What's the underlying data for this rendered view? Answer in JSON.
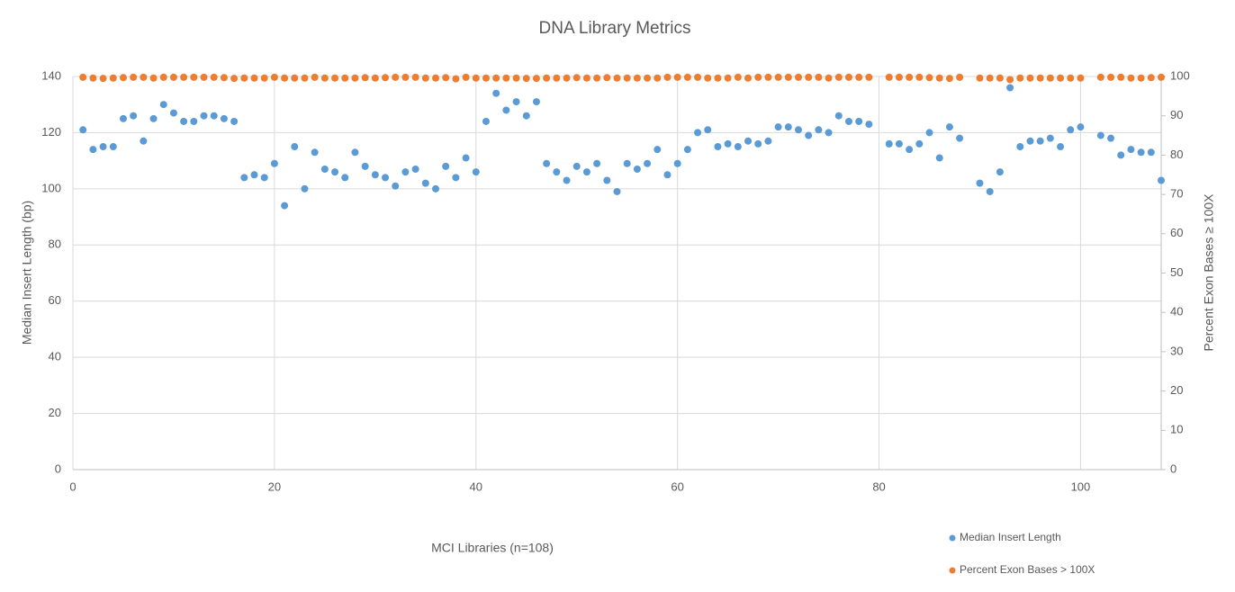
{
  "chart_data": {
    "type": "scatter",
    "title": "DNA Library Metrics",
    "x_label": "MCI Libraries (n=108)",
    "y_label": "Median Insert Length (bp)",
    "y2_label": "Percent Exon Bases ≥ 100X",
    "x": [
      1,
      2,
      3,
      4,
      5,
      6,
      7,
      8,
      9,
      10,
      11,
      12,
      13,
      14,
      15,
      16,
      17,
      18,
      19,
      20,
      21,
      22,
      23,
      24,
      25,
      26,
      27,
      28,
      29,
      30,
      31,
      32,
      33,
      34,
      35,
      36,
      37,
      38,
      39,
      40,
      41,
      42,
      43,
      44,
      45,
      46,
      47,
      48,
      49,
      50,
      51,
      52,
      53,
      54,
      55,
      56,
      57,
      58,
      59,
      60,
      61,
      62,
      63,
      64,
      65,
      66,
      67,
      68,
      69,
      70,
      71,
      72,
      73,
      74,
      75,
      76,
      77,
      78,
      79,
      81,
      82,
      83,
      84,
      85,
      86,
      87,
      88,
      90,
      91,
      92,
      93,
      94,
      95,
      96,
      97,
      98,
      99,
      100,
      102,
      103,
      104,
      105,
      106,
      107,
      108
    ],
    "series": [
      {
        "name": "Median Insert Length",
        "color": "#5b9bd5",
        "axis": "y",
        "values": [
          121,
          114,
          115,
          115,
          125,
          126,
          117,
          125,
          130,
          127,
          124,
          124,
          126,
          126,
          125,
          124,
          104,
          105,
          104,
          109,
          94,
          115,
          100,
          113,
          107,
          106,
          104,
          113,
          108,
          105,
          104,
          101,
          106,
          107,
          102,
          100,
          108,
          104,
          111,
          106,
          124,
          134,
          128,
          131,
          126,
          131,
          109,
          106,
          103,
          108,
          106,
          109,
          103,
          99,
          109,
          107,
          109,
          114,
          105,
          109,
          114,
          120,
          121,
          115,
          116,
          115,
          117,
          116,
          117,
          122,
          122,
          121,
          119,
          121,
          120,
          126,
          124,
          124,
          123,
          116,
          116,
          114,
          116,
          120,
          111,
          122,
          118,
          102,
          99,
          106,
          136,
          115,
          117,
          117,
          118,
          115,
          121,
          122,
          119,
          118,
          112,
          114,
          113,
          113,
          103
        ]
      },
      {
        "name": "Percent Exon Bases > 100X",
        "color": "#ed7d31",
        "axis": "y2",
        "values": [
          99.8,
          99.6,
          99.5,
          99.6,
          99.7,
          99.8,
          99.8,
          99.6,
          99.8,
          99.8,
          99.8,
          99.8,
          99.8,
          99.8,
          99.7,
          99.5,
          99.6,
          99.6,
          99.6,
          99.8,
          99.6,
          99.6,
          99.6,
          99.8,
          99.6,
          99.6,
          99.6,
          99.6,
          99.7,
          99.6,
          99.7,
          99.8,
          99.8,
          99.8,
          99.6,
          99.6,
          99.7,
          99.4,
          99.8,
          99.6,
          99.6,
          99.6,
          99.6,
          99.6,
          99.5,
          99.5,
          99.6,
          99.6,
          99.6,
          99.7,
          99.6,
          99.6,
          99.7,
          99.6,
          99.6,
          99.6,
          99.6,
          99.6,
          99.8,
          99.8,
          99.8,
          99.8,
          99.6,
          99.6,
          99.6,
          99.8,
          99.6,
          99.8,
          99.8,
          99.8,
          99.8,
          99.8,
          99.8,
          99.8,
          99.6,
          99.8,
          99.8,
          99.8,
          99.8,
          99.8,
          99.8,
          99.8,
          99.8,
          99.7,
          99.6,
          99.5,
          99.8,
          99.6,
          99.6,
          99.6,
          99.2,
          99.6,
          99.6,
          99.6,
          99.6,
          99.6,
          99.6,
          99.6,
          99.8,
          99.8,
          99.8,
          99.6,
          99.6,
          99.7,
          99.8
        ]
      }
    ],
    "xlim": [
      0,
      108
    ],
    "xticks": [
      0,
      20,
      40,
      60,
      80,
      100
    ],
    "ylim": [
      0,
      140
    ],
    "yticks": [
      0,
      20,
      40,
      60,
      80,
      100,
      120,
      140
    ],
    "y2lim": [
      0,
      100
    ],
    "y2ticks": [
      0,
      10,
      20,
      30,
      40,
      50,
      60,
      70,
      80,
      90,
      100
    ],
    "grid": true,
    "legend": "bottom-right"
  }
}
